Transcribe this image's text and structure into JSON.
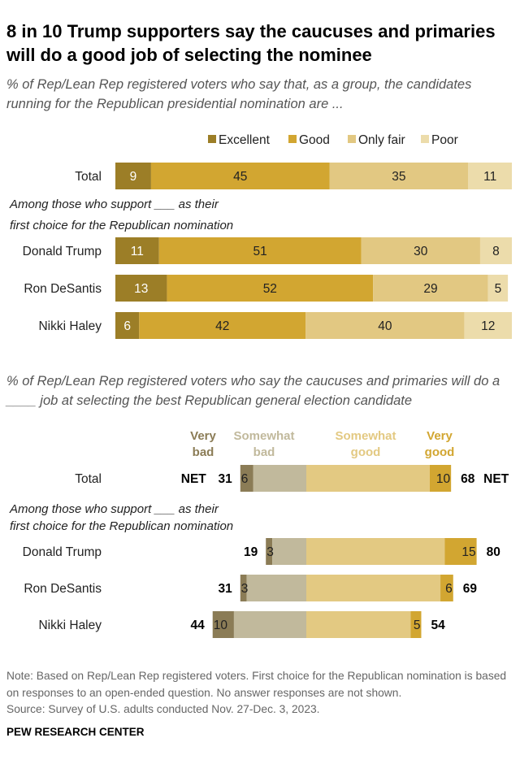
{
  "title": "8 in 10 Trump supporters say the caucuses and primaries will do a good job of selecting the nominee",
  "chart_data": [
    {
      "type": "bar",
      "orientation": "horizontal",
      "stacked": true,
      "subtitle": "% of Rep/Lean Rep registered voters who say that, as a group, the candidates running for the Republican presidential nomination are ...",
      "group_label": "Among those who support ___ as their first choice for the Republican nomination",
      "categories": [
        "Total",
        "Donald Trump",
        "Ron DeSantis",
        "Nikki Haley"
      ],
      "legend_position": "top-right",
      "series": [
        {
          "name": "Excellent",
          "color": "#9c7e27",
          "values": [
            9,
            11,
            13,
            6
          ]
        },
        {
          "name": "Good",
          "color": "#d2a631",
          "values": [
            45,
            51,
            52,
            42
          ]
        },
        {
          "name": "Only fair",
          "color": "#e2c882",
          "values": [
            35,
            30,
            29,
            40
          ]
        },
        {
          "name": "Poor",
          "color": "#ecdcab",
          "values": [
            11,
            8,
            5,
            12
          ]
        }
      ],
      "xlim": [
        0,
        100
      ]
    },
    {
      "type": "bar",
      "orientation": "horizontal",
      "diverging": true,
      "subtitle": "% of Rep/Lean Rep registered voters who say the caucuses and primaries will do a ____ job at selecting the best Republican general election candidate",
      "group_label": "Among those who support ___ as their first choice for the Republican nomination",
      "categories": [
        "Total",
        "Donald Trump",
        "Ron DeSantis",
        "Nikki Haley"
      ],
      "series": [
        {
          "name": "Very bad",
          "color": "#8b7c56",
          "label_color": "#8b7c56",
          "values": [
            6,
            3,
            3,
            10
          ]
        },
        {
          "name": "Somewhat bad",
          "color": "#c1b99c",
          "label_color": "#c1b99c",
          "values": [
            25,
            16,
            28,
            34
          ]
        },
        {
          "name": "Somewhat good",
          "color": "#e3c982",
          "label_color": "#e3c982",
          "values": [
            58,
            65,
            63,
            49
          ]
        },
        {
          "name": "Very good",
          "color": "#d2a631",
          "label_color": "#d2a631",
          "values": [
            10,
            15,
            6,
            5
          ]
        }
      ],
      "net_bad": [
        "31",
        "19",
        "31",
        "44"
      ],
      "net_good": [
        "68",
        "80",
        "69",
        "54"
      ],
      "net_label": "NET"
    }
  ],
  "note": "Note: Based on Rep/Lean Rep registered voters. First choice for the Republican nomination is based on responses to an open-ended question. No answer responses are not shown.",
  "source": "Source: Survey of U.S. adults conducted Nov. 27-Dec. 3, 2023.",
  "brand": "PEW RESEARCH CENTER"
}
